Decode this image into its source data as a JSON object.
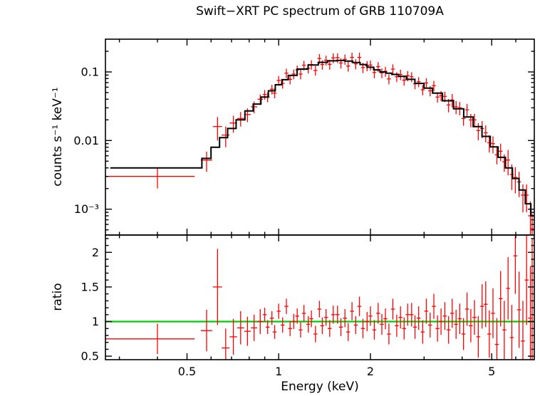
{
  "title": "Swift−XRT PC spectrum of GRB 110709A",
  "axes": {
    "x_label": "Energy (keV)",
    "top_y_label": "counts s⁻¹ keV⁻¹",
    "bottom_y_label": "ratio",
    "xlim": [
      0.27,
      6.9
    ],
    "top_ylim": [
      0.00042,
      0.3
    ],
    "bottom_ylim": [
      0.45,
      2.25
    ],
    "x_scale": "log",
    "top_y_scale": "log",
    "bottom_y_scale": "linear",
    "x_ticks": [
      {
        "v": 0.5,
        "label": "0.5"
      },
      {
        "v": 1,
        "label": "1"
      },
      {
        "v": 2,
        "label": "2"
      },
      {
        "v": 5,
        "label": "5"
      }
    ],
    "x_minor_ticks": [
      0.3,
      0.4,
      0.6,
      0.7,
      0.8,
      0.9,
      3,
      4,
      6
    ],
    "top_y_ticks": [
      {
        "v": 0.001,
        "label": "10⁻³"
      },
      {
        "v": 0.01,
        "label": "0.01"
      },
      {
        "v": 0.1,
        "label": "0.1"
      }
    ],
    "top_y_minor_ticks": [
      0.0005,
      0.0006,
      0.0007,
      0.0008,
      0.0009,
      0.002,
      0.003,
      0.004,
      0.005,
      0.006,
      0.007,
      0.008,
      0.009,
      0.02,
      0.03,
      0.04,
      0.05,
      0.06,
      0.07,
      0.08,
      0.09,
      0.2
    ],
    "bottom_y_ticks": [
      {
        "v": 0.5,
        "label": "0.5"
      },
      {
        "v": 1,
        "label": "1"
      },
      {
        "v": 1.5,
        "label": "1.5"
      },
      {
        "v": 2,
        "label": "2"
      }
    ],
    "bottom_y_minor_ticks": [
      0.6,
      0.7,
      0.8,
      0.9,
      1.1,
      1.2,
      1.3,
      1.4,
      1.6,
      1.7,
      1.8,
      1.9,
      2.1,
      2.2
    ],
    "grid": "off",
    "legend": "none"
  },
  "colors": {
    "data": "#ff0000",
    "model": "#000000",
    "ratio_line": "#00cc00",
    "frame": "#000000",
    "background": "#ffffff"
  },
  "chart_data": {
    "type": "scatter",
    "description": "Two stacked panels sharing a log energy axis: top = X-ray count spectrum (red data crosses with errors, black folded-model step line), bottom = data/model ratio (red crosses, green unity line).",
    "panels": [
      {
        "name": "spectrum",
        "y_units": "counts s⁻¹ keV⁻¹",
        "x_halfwidth_frac": 0.015,
        "point_format": [
          "energy_keV",
          "counts",
          "counts_err",
          "energy_halfwidth_keV(optional)"
        ],
        "points": [
          [
            0.4,
            0.003,
            0.001,
            0.13
          ],
          [
            0.58,
            0.0052,
            0.0017,
            0.025
          ],
          [
            0.63,
            0.016,
            0.006,
            0.022
          ],
          [
            0.67,
            0.012,
            0.004,
            0.02
          ],
          [
            0.71,
            0.018,
            0.005,
            0.02
          ],
          [
            0.75,
            0.021,
            0.005,
            0.02
          ],
          [
            0.79,
            0.024,
            0.0055,
            0.02
          ],
          [
            0.83,
            0.031,
            0.006,
            0.02
          ],
          [
            0.87,
            0.04,
            0.007,
            0.018
          ],
          [
            0.9,
            0.047,
            0.0075
          ],
          [
            0.92,
            0.043,
            0.0069
          ],
          [
            0.95,
            0.056,
            0.009
          ],
          [
            0.97,
            0.049,
            0.0078
          ],
          [
            1.0,
            0.075,
            0.012
          ],
          [
            1.03,
            0.068,
            0.011
          ],
          [
            1.06,
            0.096,
            0.015
          ],
          [
            1.09,
            0.078,
            0.012
          ],
          [
            1.12,
            0.093,
            0.015
          ],
          [
            1.15,
            0.107,
            0.017
          ],
          [
            1.18,
            0.093,
            0.015
          ],
          [
            1.21,
            0.125,
            0.02
          ],
          [
            1.25,
            0.113,
            0.018
          ],
          [
            1.28,
            0.128,
            0.02
          ],
          [
            1.32,
            0.105,
            0.017
          ],
          [
            1.36,
            0.157,
            0.025
          ],
          [
            1.39,
            0.128,
            0.02
          ],
          [
            1.43,
            0.148,
            0.024
          ],
          [
            1.47,
            0.129,
            0.021
          ],
          [
            1.51,
            0.16,
            0.026
          ],
          [
            1.56,
            0.161,
            0.026
          ],
          [
            1.6,
            0.135,
            0.023
          ],
          [
            1.65,
            0.153,
            0.026
          ],
          [
            1.69,
            0.122,
            0.021
          ],
          [
            1.74,
            0.163,
            0.028
          ],
          [
            1.79,
            0.131,
            0.022
          ],
          [
            1.84,
            0.163,
            0.028
          ],
          [
            1.89,
            0.116,
            0.02
          ],
          [
            1.95,
            0.123,
            0.021
          ],
          [
            2.0,
            0.126,
            0.021
          ],
          [
            2.06,
            0.098,
            0.017
          ],
          [
            2.12,
            0.119,
            0.02
          ],
          [
            2.18,
            0.097,
            0.016
          ],
          [
            2.24,
            0.102,
            0.017
          ],
          [
            2.3,
            0.079,
            0.013
          ],
          [
            2.37,
            0.11,
            0.019
          ],
          [
            2.44,
            0.085,
            0.014
          ],
          [
            2.51,
            0.092,
            0.016
          ],
          [
            2.58,
            0.076,
            0.013
          ],
          [
            2.65,
            0.088,
            0.015
          ],
          [
            2.73,
            0.085,
            0.014
          ],
          [
            2.8,
            0.067,
            0.011
          ],
          [
            2.88,
            0.072,
            0.012
          ],
          [
            2.97,
            0.055,
            0.0094
          ],
          [
            3.05,
            0.069,
            0.012
          ],
          [
            3.14,
            0.053,
            0.009
          ],
          [
            3.23,
            0.063,
            0.011
          ],
          [
            3.32,
            0.043,
            0.0073
          ],
          [
            3.41,
            0.045,
            0.0077
          ],
          [
            3.51,
            0.044,
            0.0075
          ],
          [
            3.61,
            0.033,
            0.0073
          ],
          [
            3.71,
            0.039,
            0.0086
          ],
          [
            3.82,
            0.031,
            0.0068
          ],
          [
            3.93,
            0.03,
            0.0066
          ],
          [
            4.04,
            0.021,
            0.0046
          ],
          [
            4.15,
            0.028,
            0.0062
          ],
          [
            4.27,
            0.02,
            0.0044
          ],
          [
            4.39,
            0.02,
            0.0044
          ],
          [
            4.52,
            0.014,
            0.0039
          ],
          [
            4.65,
            0.015,
            0.0042
          ],
          [
            4.78,
            0.013,
            0.0036
          ],
          [
            4.91,
            0.0093,
            0.0026
          ],
          [
            5.05,
            0.009,
            0.0025
          ],
          [
            5.2,
            0.0062,
            0.0017
          ],
          [
            5.35,
            0.007,
            0.002
          ],
          [
            5.5,
            0.0049,
            0.0014
          ],
          [
            5.66,
            0.0052,
            0.0021
          ],
          [
            5.82,
            0.0032,
            0.0013
          ],
          [
            5.98,
            0.0029,
            0.0012
          ],
          [
            6.15,
            0.0025,
            0.001
          ],
          [
            6.33,
            0.0016,
            0.0007
          ],
          [
            6.51,
            0.0016,
            0.0007
          ],
          [
            6.7,
            0.0008,
            0.0005,
            0.12
          ],
          [
            6.79,
            0.00052,
            0.00034,
            0.08
          ]
        ],
        "model": [
          [
            0.28,
            0.004
          ],
          [
            0.54,
            0.004
          ],
          [
            0.58,
            0.0055
          ],
          [
            0.62,
            0.008
          ],
          [
            0.66,
            0.011
          ],
          [
            0.7,
            0.015
          ],
          [
            0.75,
            0.02
          ],
          [
            0.8,
            0.027
          ],
          [
            0.85,
            0.034
          ],
          [
            0.9,
            0.043
          ],
          [
            0.95,
            0.053
          ],
          [
            1.0,
            0.065
          ],
          [
            1.05,
            0.077
          ],
          [
            1.1,
            0.089
          ],
          [
            1.2,
            0.11
          ],
          [
            1.3,
            0.126
          ],
          [
            1.4,
            0.138
          ],
          [
            1.5,
            0.145
          ],
          [
            1.6,
            0.147
          ],
          [
            1.7,
            0.144
          ],
          [
            1.8,
            0.137
          ],
          [
            1.9,
            0.128
          ],
          [
            2.0,
            0.117
          ],
          [
            2.1,
            0.107
          ],
          [
            2.2,
            0.1
          ],
          [
            2.3,
            0.096
          ],
          [
            2.4,
            0.092
          ],
          [
            2.55,
            0.086
          ],
          [
            2.7,
            0.078
          ],
          [
            2.9,
            0.068
          ],
          [
            3.1,
            0.058
          ],
          [
            3.3,
            0.049
          ],
          [
            3.6,
            0.038
          ],
          [
            3.9,
            0.029
          ],
          [
            4.2,
            0.022
          ],
          [
            4.5,
            0.016
          ],
          [
            4.8,
            0.0115
          ],
          [
            5.1,
            0.0081
          ],
          [
            5.4,
            0.0057
          ],
          [
            5.7,
            0.004
          ],
          [
            6.0,
            0.0028
          ],
          [
            6.3,
            0.0019
          ],
          [
            6.6,
            0.0012
          ],
          [
            6.85,
            0.0008
          ]
        ]
      },
      {
        "name": "ratio",
        "reference_line": 1.0,
        "x_halfwidth_frac": 0.015,
        "point_format": [
          "energy_keV",
          "ratio",
          "ratio_err",
          "energy_halfwidth_keV(optional)"
        ],
        "points": [
          [
            0.4,
            0.75,
            0.22,
            0.13
          ],
          [
            0.58,
            0.87,
            0.3,
            0.025
          ],
          [
            0.63,
            1.5,
            0.55,
            0.022
          ],
          [
            0.67,
            0.62,
            0.28,
            0.02
          ],
          [
            0.71,
            0.78,
            0.26,
            0.02
          ],
          [
            0.75,
            0.91,
            0.24,
            0.02
          ],
          [
            0.79,
            0.86,
            0.21,
            0.02
          ],
          [
            0.83,
            0.91,
            0.19,
            0.02
          ],
          [
            0.87,
            1.0,
            0.18,
            0.018
          ],
          [
            0.9,
            1.1,
            0.1
          ],
          [
            0.92,
            0.92,
            0.1
          ],
          [
            0.95,
            1.05,
            0.1
          ],
          [
            0.97,
            0.85,
            0.1
          ],
          [
            1.0,
            1.15,
            0.11
          ],
          [
            1.03,
            0.95,
            0.11
          ],
          [
            1.06,
            1.22,
            0.11
          ],
          [
            1.09,
            0.9,
            0.11
          ],
          [
            1.12,
            1.0,
            0.11
          ],
          [
            1.15,
            1.08,
            0.11
          ],
          [
            1.18,
            0.88,
            0.11
          ],
          [
            1.21,
            1.12,
            0.12
          ],
          [
            1.25,
            0.96,
            0.12
          ],
          [
            1.28,
            1.04,
            0.12
          ],
          [
            1.32,
            0.82,
            0.12
          ],
          [
            1.36,
            1.18,
            0.12
          ],
          [
            1.39,
            0.94,
            0.12
          ],
          [
            1.43,
            1.06,
            0.12
          ],
          [
            1.47,
            0.9,
            0.12
          ],
          [
            1.51,
            1.1,
            0.13
          ],
          [
            1.56,
            1.1,
            0.13
          ],
          [
            1.6,
            0.92,
            0.13
          ],
          [
            1.65,
            1.05,
            0.13
          ],
          [
            1.69,
            0.85,
            0.13
          ],
          [
            1.74,
            1.15,
            0.13
          ],
          [
            1.79,
            0.95,
            0.13
          ],
          [
            1.84,
            1.22,
            0.14
          ],
          [
            1.89,
            0.9,
            0.14
          ],
          [
            1.95,
            1.0,
            0.14
          ],
          [
            2.0,
            1.08,
            0.14
          ],
          [
            2.06,
            0.88,
            0.14
          ],
          [
            2.12,
            1.12,
            0.15
          ],
          [
            2.18,
            0.96,
            0.15
          ],
          [
            2.24,
            1.04,
            0.15
          ],
          [
            2.3,
            0.82,
            0.15
          ],
          [
            2.37,
            1.18,
            0.15
          ],
          [
            2.44,
            0.94,
            0.16
          ],
          [
            2.51,
            1.06,
            0.16
          ],
          [
            2.58,
            0.9,
            0.16
          ],
          [
            2.65,
            1.1,
            0.16
          ],
          [
            2.73,
            1.1,
            0.17
          ],
          [
            2.8,
            0.92,
            0.17
          ],
          [
            2.88,
            1.05,
            0.17
          ],
          [
            2.97,
            0.85,
            0.17
          ],
          [
            3.05,
            1.15,
            0.18
          ],
          [
            3.14,
            0.95,
            0.18
          ],
          [
            3.23,
            1.22,
            0.18
          ],
          [
            3.32,
            0.9,
            0.19
          ],
          [
            3.41,
            1.0,
            0.19
          ],
          [
            3.51,
            1.08,
            0.2
          ],
          [
            3.61,
            0.88,
            0.2
          ],
          [
            3.71,
            1.12,
            0.21
          ],
          [
            3.82,
            0.96,
            0.21
          ],
          [
            3.93,
            1.04,
            0.22
          ],
          [
            4.04,
            0.82,
            0.23
          ],
          [
            4.15,
            1.18,
            0.24
          ],
          [
            4.27,
            0.94,
            0.24
          ],
          [
            4.39,
            1.06,
            0.25
          ],
          [
            4.52,
            0.78,
            0.3
          ],
          [
            4.65,
            1.22,
            0.32
          ],
          [
            4.78,
            1.25,
            0.33
          ],
          [
            4.91,
            0.82,
            0.34
          ],
          [
            5.05,
            1.12,
            0.36
          ],
          [
            5.2,
            0.67,
            0.38
          ],
          [
            5.35,
            1.33,
            0.4
          ],
          [
            5.5,
            0.88,
            0.42
          ],
          [
            5.66,
            1.48,
            0.45
          ],
          [
            5.82,
            0.77,
            0.47
          ],
          [
            5.98,
            1.95,
            0.55
          ],
          [
            6.15,
            1.17,
            0.55
          ],
          [
            6.33,
            0.72,
            0.58
          ],
          [
            6.51,
            1.6,
            0.65
          ],
          [
            6.7,
            1.05,
            0.75,
            0.12
          ],
          [
            6.79,
            1.3,
            0.9,
            0.08
          ]
        ]
      }
    ]
  }
}
